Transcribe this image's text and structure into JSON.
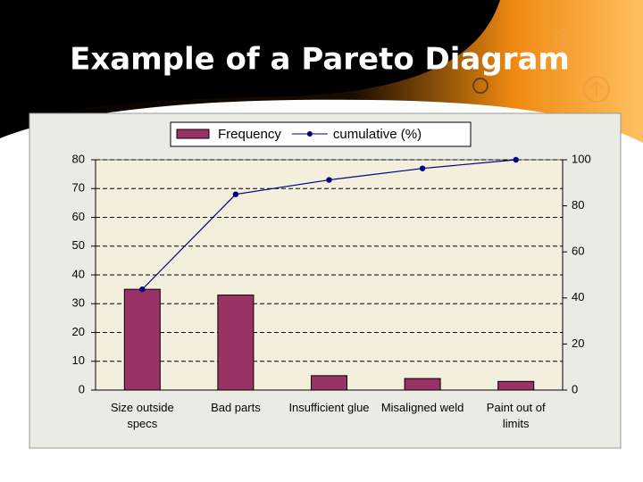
{
  "title": "Example of a Pareto Diagram",
  "chart_data": {
    "type": "bar",
    "categories": [
      "Size outside specs",
      "Bad parts",
      "Insufficient glue",
      "Misaligned weld",
      "Paint out of limits"
    ],
    "series": [
      {
        "name": "Frequency",
        "type": "bar",
        "color": "#993366",
        "values": [
          35,
          33,
          5,
          4,
          3
        ]
      },
      {
        "name": "cumulative (%)",
        "type": "line",
        "axis": "y2",
        "color": "#000080",
        "values": [
          43.75,
          85,
          91.25,
          96.25,
          100
        ]
      }
    ],
    "ylim": [
      0,
      80
    ],
    "yticks": [
      0,
      10,
      20,
      30,
      40,
      50,
      60,
      70,
      80
    ],
    "y2lim": [
      0,
      100
    ],
    "y2ticks": [
      0,
      20,
      40,
      60,
      80,
      100
    ],
    "grid": true
  }
}
